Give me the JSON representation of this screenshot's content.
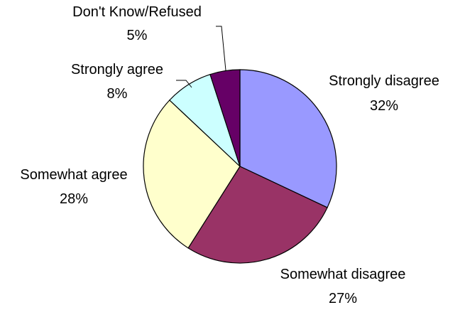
{
  "chart_data": {
    "type": "pie",
    "title": "",
    "start_angle_deg": 90,
    "direction": "clockwise",
    "slices": [
      {
        "label": "Strongly disagree",
        "value": 32,
        "value_label": "32%",
        "color": "#9999ff"
      },
      {
        "label": "Somewhat disagree",
        "value": 27,
        "value_label": "27%",
        "color": "#993366"
      },
      {
        "label": "Somewhat agree",
        "value": 28,
        "value_label": "28%",
        "color": "#ffffcc"
      },
      {
        "label": "Strongly agree",
        "value": 8,
        "value_label": "8%",
        "color": "#ccffff"
      },
      {
        "label": "Don't Know/Refused",
        "value": 5,
        "value_label": "5%",
        "color": "#660066"
      }
    ]
  }
}
